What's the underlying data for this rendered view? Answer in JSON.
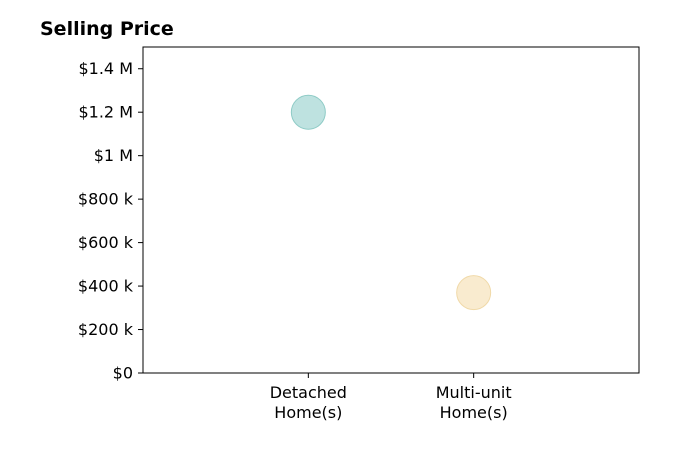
{
  "chart_data": {
    "type": "scatter",
    "title": "Selling Price",
    "xlabel": "",
    "ylabel": "",
    "categories": [
      [
        "Detached",
        "Home(s)"
      ],
      [
        "Multi-unit",
        "Home(s)"
      ]
    ],
    "xlim": [
      0,
      3
    ],
    "ylim": [
      0,
      1500000
    ],
    "yticks": [
      {
        "value": 0,
        "label": "$0"
      },
      {
        "value": 200000,
        "label": "$200 k"
      },
      {
        "value": 400000,
        "label": "$400 k"
      },
      {
        "value": 600000,
        "label": "$600 k"
      },
      {
        "value": 800000,
        "label": "$800 k"
      },
      {
        "value": 1000000,
        "label": "$1 M"
      },
      {
        "value": 1200000,
        "label": "$1.2 M"
      },
      {
        "value": 1400000,
        "label": "$1.4 M"
      }
    ],
    "points": [
      {
        "category": "Detached Home(s)",
        "x": 1,
        "y": 1200000,
        "color": "#a8d8d5",
        "edge": "#8ecbc6"
      },
      {
        "category": "Multi-unit Home(s)",
        "x": 2,
        "y": 370000,
        "color": "#f7e4bf",
        "edge": "#f0d9a8"
      }
    ],
    "grid": false,
    "legend": "none"
  }
}
